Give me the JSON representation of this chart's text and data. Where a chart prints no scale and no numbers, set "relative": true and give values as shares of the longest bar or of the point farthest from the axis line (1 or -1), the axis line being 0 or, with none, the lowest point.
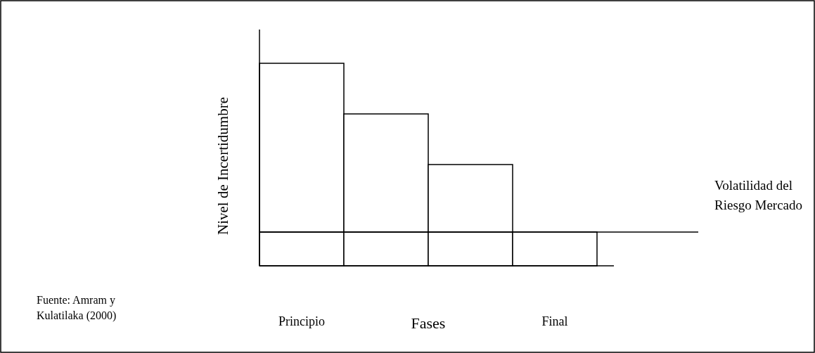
{
  "chart_data": {
    "type": "bar",
    "relative": true,
    "stacked": true,
    "xlabel": "Fases",
    "ylabel": "Nivel de Incertidumbre",
    "categories": [
      "Principio",
      null,
      null,
      "Final"
    ],
    "series": [
      {
        "color": "#ffffff",
        "values": [
          0.167,
          0.167,
          0.167,
          0.167
        ]
      },
      {
        "color": "#ffffff",
        "values": [
          0.833,
          0.583,
          0.333,
          null
        ]
      }
    ],
    "ref_lines": [
      {
        "axis": "y",
        "value": 0.167,
        "label": "Volatilidad del Riesgo Mercado",
        "color": "#000000"
      }
    ],
    "annotations": [
      "Fuente: Amram y Kulatilaka (2000)"
    ]
  }
}
